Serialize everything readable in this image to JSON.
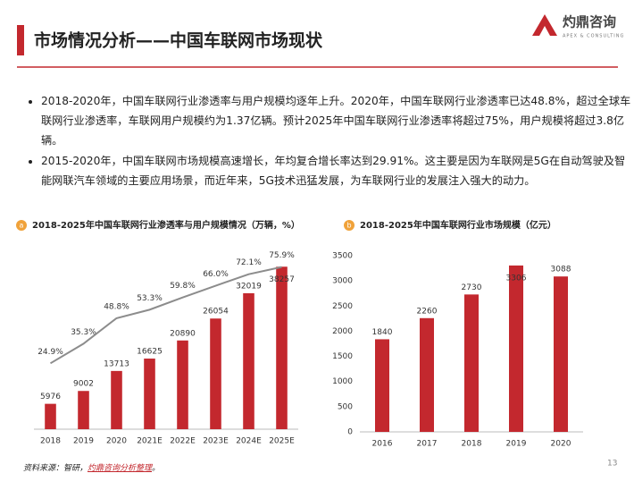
{
  "header": {
    "title": "市场情况分析——中国车联网市场现状"
  },
  "logo": {
    "name": "灼鼎咨询",
    "tagline": "APEX & CONSULTING"
  },
  "bullets": [
    "2018-2020年，中国车联网行业渗透率与用户规模均逐年上升。2020年，中国车联网行业渗透率已达48.8%，超过全球车联网行业渗透率，车联网用户规模约为1.37亿辆。预计2025年中国车联网行业渗透率将超过75%，用户规模将超过3.8亿辆。",
    "2015-2020年，中国车联网市场规模高速增长，年均复合增长率达到29.91%。这主要是因为车联网是5G在自动驾驶及智能网联汽车领域的主要应用场景，而近年来，5G技术迅猛发展，为车联网行业的发展注入强大的动力。"
  ],
  "chart_data": [
    {
      "type": "bar",
      "badge": "a",
      "title": "2018-2025年中国车联网行业渗透率与用户规模情况（万辆，%）",
      "categories": [
        "2018",
        "2019",
        "2020",
        "2021E",
        "2022E",
        "2023E",
        "2024E",
        "2025E"
      ],
      "ylim": [
        0,
        40000
      ],
      "y2lim": [
        -10,
        80
      ],
      "series": [
        {
          "type": "bar",
          "color": "#c3282e",
          "values": [
            5976,
            9002,
            13713,
            16625,
            20890,
            26054,
            32019,
            38257
          ]
        },
        {
          "type": "line",
          "axis": "y2",
          "color": "#8c8c8c",
          "values": [
            24.9,
            35.3,
            48.8,
            53.3,
            59.8,
            66.0,
            72.1,
            75.9
          ],
          "value_labels": [
            "24.9%",
            "35.3%",
            "48.8%",
            "53.3%",
            "59.8%",
            "66.0%",
            "72.1%",
            "75.9%"
          ]
        }
      ]
    },
    {
      "type": "bar",
      "badge": "b",
      "title": "2018-2025年中国车联网行业市场规模（亿元）",
      "categories": [
        "2016",
        "2017",
        "2018",
        "2019",
        "2020"
      ],
      "ylim": [
        0,
        3500
      ],
      "yticks": [
        0,
        500,
        1000,
        1500,
        2000,
        2500,
        3000,
        3500
      ],
      "series": [
        {
          "type": "bar",
          "color": "#c3282e",
          "values": [
            1840,
            2260,
            2730,
            3306,
            3088
          ]
        }
      ]
    }
  ],
  "source": {
    "prefix": "资料来源：智研，",
    "highlight": "灼鼎咨询分析整理",
    "suffix": "。"
  },
  "page_number": "13"
}
